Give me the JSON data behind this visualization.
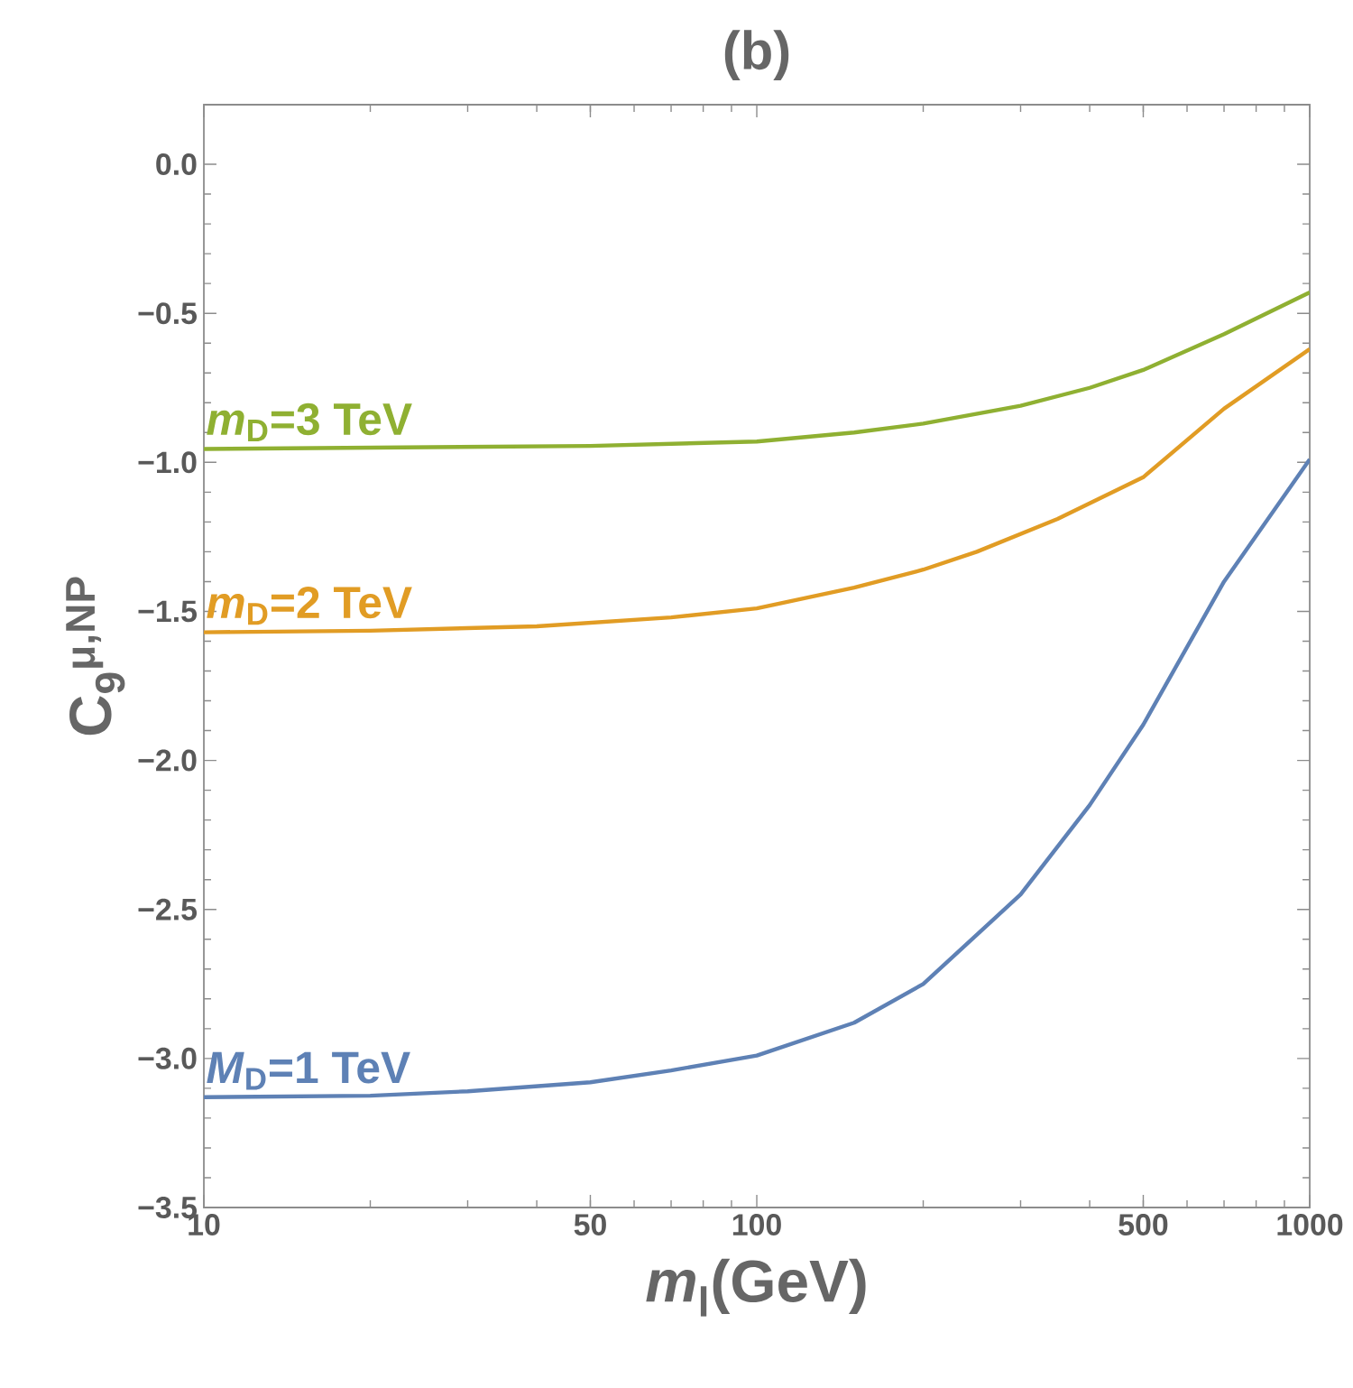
{
  "chart_data": {
    "type": "line",
    "title": "(b)",
    "xlabel": "*m*$_{l}$(GeV)",
    "ylabel": "C$_{9}$$^{μ,NP}$",
    "log": "x",
    "xlim": [
      10,
      1000
    ],
    "ylim": [
      -3.5,
      0.2
    ],
    "xticks": [
      10,
      50,
      100,
      500,
      1000
    ],
    "yticks": [
      {
        "value": -3.5,
        "label": "−3.5"
      },
      {
        "value": -3.0,
        "label": "−3.0"
      },
      {
        "value": -2.5,
        "label": "−2.5"
      },
      {
        "value": -2.0,
        "label": "−2.0"
      },
      {
        "value": -1.5,
        "label": "−1.5"
      },
      {
        "value": -1.0,
        "label": "−1.0"
      },
      {
        "value": -0.5,
        "label": "−0.5"
      },
      {
        "value": 0,
        "label": "0.0"
      }
    ],
    "grid": false,
    "legend": false,
    "marker": "none",
    "line_style": "solid",
    "series": [
      {
        "name": "*M*$_{D}$=1 TeV",
        "color": "#5e81b5",
        "x": [
          10,
          20,
          30,
          50,
          70,
          100,
          150,
          200,
          300,
          400,
          500,
          700,
          1000
        ],
        "values": [
          -3.13,
          -3.125,
          -3.11,
          -3.08,
          -3.04,
          -2.99,
          -2.88,
          -2.75,
          -2.45,
          -2.15,
          -1.88,
          -1.4,
          -0.99
        ]
      },
      {
        "name": "*m*$_{D}$=2 TeV",
        "color": "#e19c24",
        "x": [
          10,
          20,
          40,
          70,
          100,
          150,
          200,
          250,
          350,
          500,
          700,
          1000
        ],
        "values": [
          -1.57,
          -1.565,
          -1.55,
          -1.52,
          -1.49,
          -1.42,
          -1.36,
          -1.3,
          -1.19,
          -1.05,
          -0.82,
          -0.62
        ]
      },
      {
        "name": "*m*$_{D}$=3 TeV",
        "color": "#8fb032",
        "x": [
          10,
          50,
          100,
          150,
          200,
          300,
          400,
          500,
          700,
          1000
        ],
        "values": [
          -0.955,
          -0.945,
          -0.93,
          -0.9,
          -0.87,
          -0.81,
          -0.75,
          -0.69,
          -0.57,
          -0.43
        ]
      }
    ]
  }
}
